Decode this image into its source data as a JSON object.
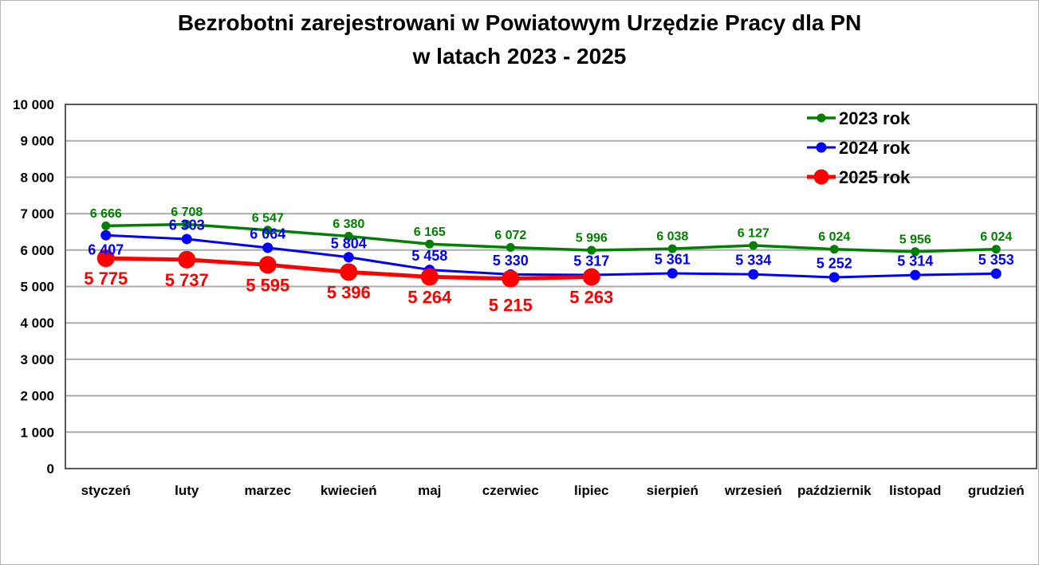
{
  "chart_data": {
    "type": "line",
    "title": "Bezrobotni zarejestrowani w Powiatowym Urzędzie Pracy dla PN",
    "subtitle": "w latach 2023 - 2025",
    "categories": [
      "styczeń",
      "luty",
      "marzec",
      "kwiecień",
      "maj",
      "czerwiec",
      "lipiec",
      "sierpień",
      "wrzesień",
      "październik",
      "listopad",
      "grudzień"
    ],
    "series": [
      {
        "name": "2023 rok",
        "color": "#008000",
        "values": [
          6666,
          6708,
          6547,
          6380,
          6165,
          6072,
          5996,
          6038,
          6127,
          6024,
          5956,
          6024
        ],
        "line_width": 3.5,
        "marker_size": 5.5,
        "label_size": 16,
        "label_position": "above"
      },
      {
        "name": "2024 rok",
        "color": "#0000FF",
        "values": [
          6407,
          6303,
          6064,
          5804,
          5458,
          5330,
          5317,
          5361,
          5334,
          5252,
          5314,
          5353
        ],
        "line_width": 3,
        "marker_size": 6.5,
        "label_size": 18,
        "label_position": "above",
        "label_position_overrides": {
          "0": "below"
        }
      },
      {
        "name": "2025 rok",
        "color": "#FF0000",
        "values": [
          5775,
          5737,
          5595,
          5396,
          5264,
          5215,
          5263
        ],
        "line_width": 5,
        "marker_size": 11,
        "label_size": 22,
        "label_position": "below",
        "label_dy_overrides": {
          "5": 8
        }
      }
    ],
    "ylim": [
      0,
      10000
    ],
    "ytick_step": 1000,
    "ytick_labels": [
      "0",
      "1 000",
      "2 000",
      "3 000",
      "4 000",
      "5 000",
      "6 000",
      "7 000",
      "8 000",
      "9 000",
      "10 000"
    ],
    "grid": "horizontal",
    "legend_position": "top-right",
    "number_format": "space-thousands",
    "axis_text_color": "#000000",
    "gridline_color": "#ABABAB",
    "plot_border_color": "#595959"
  }
}
